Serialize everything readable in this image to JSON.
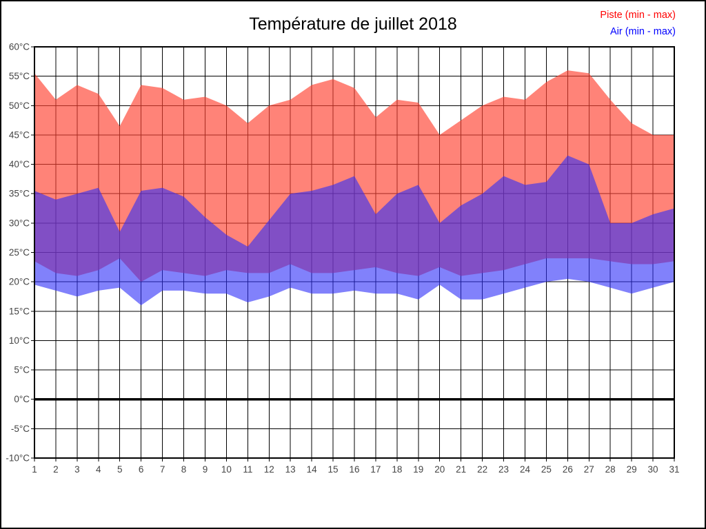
{
  "title": "Température de juillet 2018",
  "legend": {
    "position": "top-right",
    "items": [
      {
        "label": "Piste (min - max)",
        "color": "#ff0000"
      },
      {
        "label": "Air (min - max)",
        "color": "#0000ff"
      }
    ]
  },
  "chart_data": {
    "type": "area",
    "title": "Température de juillet 2018",
    "xlabel": "",
    "ylabel": "",
    "x": [
      1,
      2,
      3,
      4,
      5,
      6,
      7,
      8,
      9,
      10,
      11,
      12,
      13,
      14,
      15,
      16,
      17,
      18,
      19,
      20,
      21,
      22,
      23,
      24,
      25,
      26,
      27,
      28,
      29,
      30,
      31
    ],
    "ylim": [
      -10,
      60
    ],
    "ytick_step": 5,
    "ytick_suffix": "°C",
    "grid": true,
    "zero_line": true,
    "legend_position": "top-right",
    "series": [
      {
        "name": "Piste (min - max)",
        "fill": "rgba(255,64,48,0.65)",
        "max": [
          55.5,
          51,
          53.5,
          52,
          46.5,
          53.5,
          53,
          51,
          51.5,
          50,
          47,
          50,
          51,
          53.5,
          54.5,
          53,
          48,
          51,
          50.5,
          45,
          47.5,
          50,
          51.5,
          51,
          54,
          56,
          55.5,
          51,
          47,
          45,
          45
        ],
        "min": [
          23.5,
          21.5,
          21,
          22,
          24,
          20,
          22,
          21.5,
          21,
          22,
          21.5,
          21.5,
          23,
          21.5,
          21.5,
          22,
          22.5,
          21.5,
          21,
          22.5,
          21,
          21.5,
          22,
          23,
          24,
          24,
          24,
          23.5,
          23,
          23,
          23.5
        ]
      },
      {
        "name": "Air (min - max)",
        "fill": "rgba(45,45,248,0.6)",
        "max": [
          35.5,
          34,
          35,
          36,
          28.5,
          35.5,
          36,
          34.5,
          31,
          28,
          26,
          30.5,
          35,
          35.5,
          36.5,
          38,
          31.5,
          35,
          36.5,
          30,
          33,
          35,
          38,
          36.5,
          37,
          41.5,
          40,
          30,
          30,
          31.5,
          32.5
        ],
        "min": [
          19.5,
          18.5,
          17.5,
          18.5,
          19,
          16,
          18.5,
          18.5,
          18,
          18,
          16.5,
          17.5,
          19,
          18,
          18,
          18.5,
          18,
          18,
          17,
          19.5,
          17,
          17,
          18,
          19,
          20,
          20.5,
          20,
          19,
          18,
          19,
          20
        ]
      }
    ]
  },
  "colors": {
    "grid": "#000000",
    "frame": "#000000",
    "tick_label": "#444444",
    "zero_line": "#000000",
    "background": "#ffffff"
  }
}
